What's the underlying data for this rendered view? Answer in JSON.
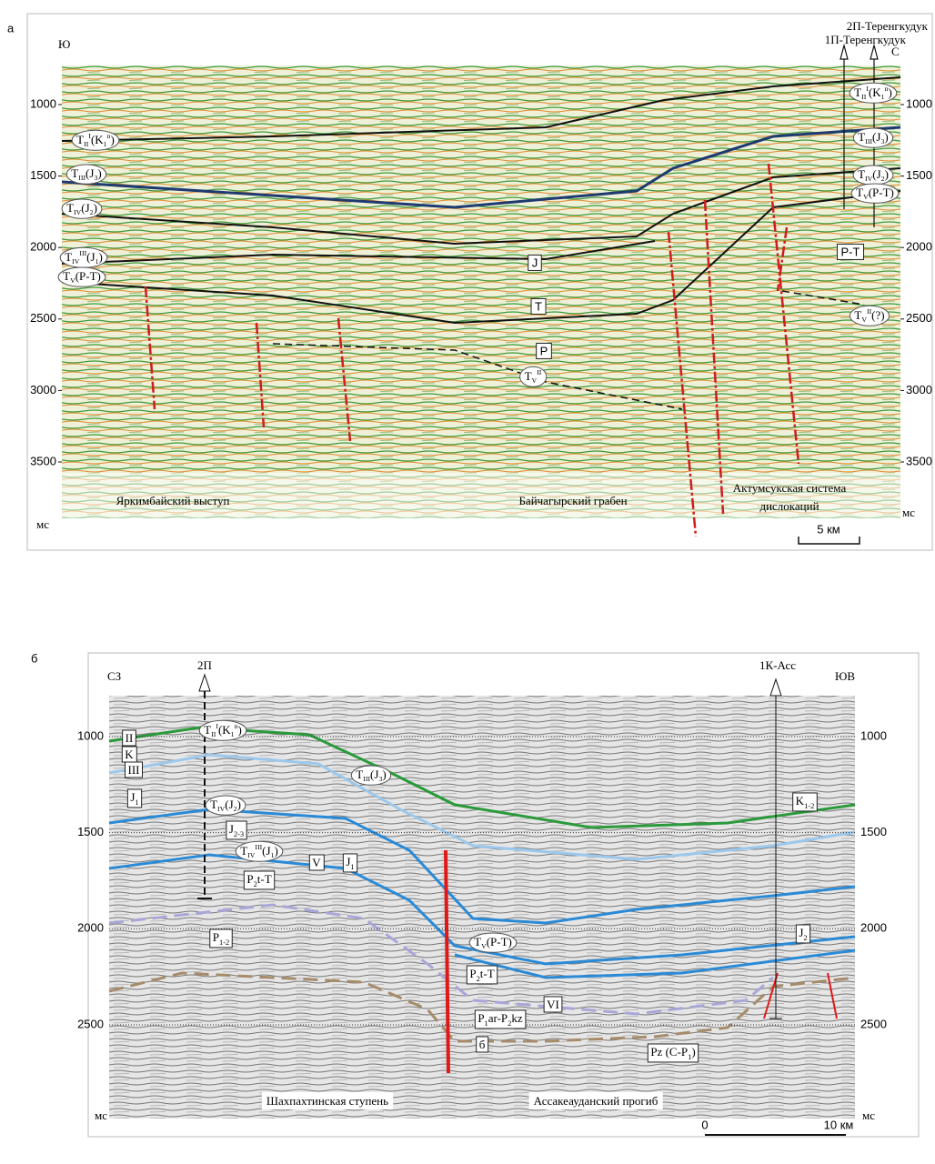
{
  "panel_a": {
    "letter": "а",
    "dir_left": "Ю",
    "dir_right": "С",
    "wells": [
      "2П-Теренгкудук",
      "1П-Теренгкудук"
    ],
    "depth_ticks": [
      1000,
      1500,
      2000,
      2500,
      3000,
      3500
    ],
    "unit": "мс",
    "horizons": [
      [
        {
          "b": "T"
        },
        {
          "sub": "II"
        },
        {
          "sup": "I"
        },
        {
          "b": "(K"
        },
        {
          "sub": "1"
        },
        {
          "sup": "n"
        },
        {
          "b": ")"
        }
      ],
      [
        {
          "b": "T"
        },
        {
          "sub": "III"
        },
        {
          "b": "(J"
        },
        {
          "sub": "3"
        },
        {
          "b": ")"
        }
      ],
      [
        {
          "b": "T"
        },
        {
          "sub": "IV"
        },
        {
          "b": "(J"
        },
        {
          "sub": "2"
        },
        {
          "b": ")"
        }
      ],
      [
        {
          "b": "T"
        },
        {
          "sub": "IV"
        },
        {
          "sup": "III"
        },
        {
          "b": "(J"
        },
        {
          "sub": "1"
        },
        {
          "b": ")"
        }
      ],
      [
        {
          "b": "T"
        },
        {
          "sub": "V"
        },
        {
          "b": "(P-T)"
        }
      ],
      [
        {
          "b": "T"
        },
        {
          "sub": "II"
        },
        {
          "sup": "I"
        },
        {
          "b": "(K"
        },
        {
          "sub": "1"
        },
        {
          "sup": "n"
        },
        {
          "b": ")"
        }
      ],
      [
        {
          "b": "T"
        },
        {
          "sub": "III"
        },
        {
          "b": "(J"
        },
        {
          "sub": "3"
        },
        {
          "b": ")"
        }
      ],
      [
        {
          "b": "T"
        },
        {
          "sub": "IV"
        },
        {
          "b": "(J"
        },
        {
          "sub": "2"
        },
        {
          "b": ")"
        }
      ],
      [
        {
          "b": "T"
        },
        {
          "sub": "V"
        },
        {
          "b": "(P-T)"
        }
      ],
      [
        {
          "b": "T"
        },
        {
          "sub": "V"
        },
        {
          "sup": "II"
        },
        {
          "b": "(?)"
        }
      ],
      [
        {
          "b": "T"
        },
        {
          "sub": "V"
        },
        {
          "sup": "II"
        }
      ]
    ],
    "units": [
      "J",
      "T",
      "P",
      "P-T"
    ],
    "regions": [
      "Яркимбайский выступ",
      "Байчагырский грабен",
      "Актумсукская система",
      "дислокаций"
    ],
    "scale": "5 км"
  },
  "panel_b": {
    "letter": "б",
    "dir_left": "СЗ",
    "dir_right": "ЮВ",
    "wells": [
      "2П",
      "1К-Асс"
    ],
    "depth_ticks": [
      1000,
      1500,
      2000,
      2500
    ],
    "unit": "мс",
    "horizons": [
      [
        {
          "b": "T"
        },
        {
          "sub": "II"
        },
        {
          "sup": "I"
        },
        {
          "b": "(K"
        },
        {
          "sub": "1"
        },
        {
          "sup": "n"
        },
        {
          "b": ")"
        }
      ],
      [
        {
          "b": "T"
        },
        {
          "sub": "III"
        },
        {
          "b": "(J"
        },
        {
          "sub": "3"
        },
        {
          "b": ")"
        }
      ],
      [
        {
          "b": "T"
        },
        {
          "sub": "IV"
        },
        {
          "b": "(J"
        },
        {
          "sub": "2"
        },
        {
          "b": ")"
        }
      ],
      [
        {
          "b": "T"
        },
        {
          "sub": "IV"
        },
        {
          "sup": "III"
        },
        {
          "b": "(J"
        },
        {
          "sub": "1"
        },
        {
          "b": ")"
        }
      ],
      [
        {
          "b": "T"
        },
        {
          "sub": "V"
        },
        {
          "b": "(P-T)"
        }
      ]
    ],
    "units": [
      [
        {
          "b": "II"
        }
      ],
      [
        {
          "b": "K"
        }
      ],
      [
        {
          "b": "III"
        }
      ],
      [
        {
          "b": "J"
        },
        {
          "sub": "1"
        }
      ],
      [
        {
          "b": "J"
        },
        {
          "sub": "2-3"
        }
      ],
      [
        {
          "b": "P"
        },
        {
          "sub": "2"
        },
        {
          "b": "t-T"
        }
      ],
      [
        {
          "b": "V"
        }
      ],
      [
        {
          "b": "J"
        },
        {
          "sub": "1"
        }
      ],
      [
        {
          "b": "P"
        },
        {
          "sub": "1-2"
        }
      ],
      [
        {
          "b": "J"
        },
        {
          "sub": "2"
        }
      ],
      [
        {
          "b": "P"
        },
        {
          "sub": "2"
        },
        {
          "b": "t-T"
        }
      ],
      [
        {
          "b": "VI"
        }
      ],
      [
        {
          "b": "P"
        },
        {
          "sub": "1"
        },
        {
          "b": "ar-P"
        },
        {
          "sub": "2"
        },
        {
          "b": "kz"
        }
      ],
      [
        {
          "b": "б"
        }
      ],
      [
        {
          "b": "Pz (C-P"
        },
        {
          "sub": "1"
        },
        {
          "b": ")"
        }
      ],
      [
        {
          "b": "K"
        },
        {
          "sub": "1-2"
        }
      ]
    ],
    "regions": [
      "Шахпахтинская ступень",
      "Ассакеауданский прогиб"
    ],
    "scale": [
      "0",
      "10 км"
    ]
  }
}
